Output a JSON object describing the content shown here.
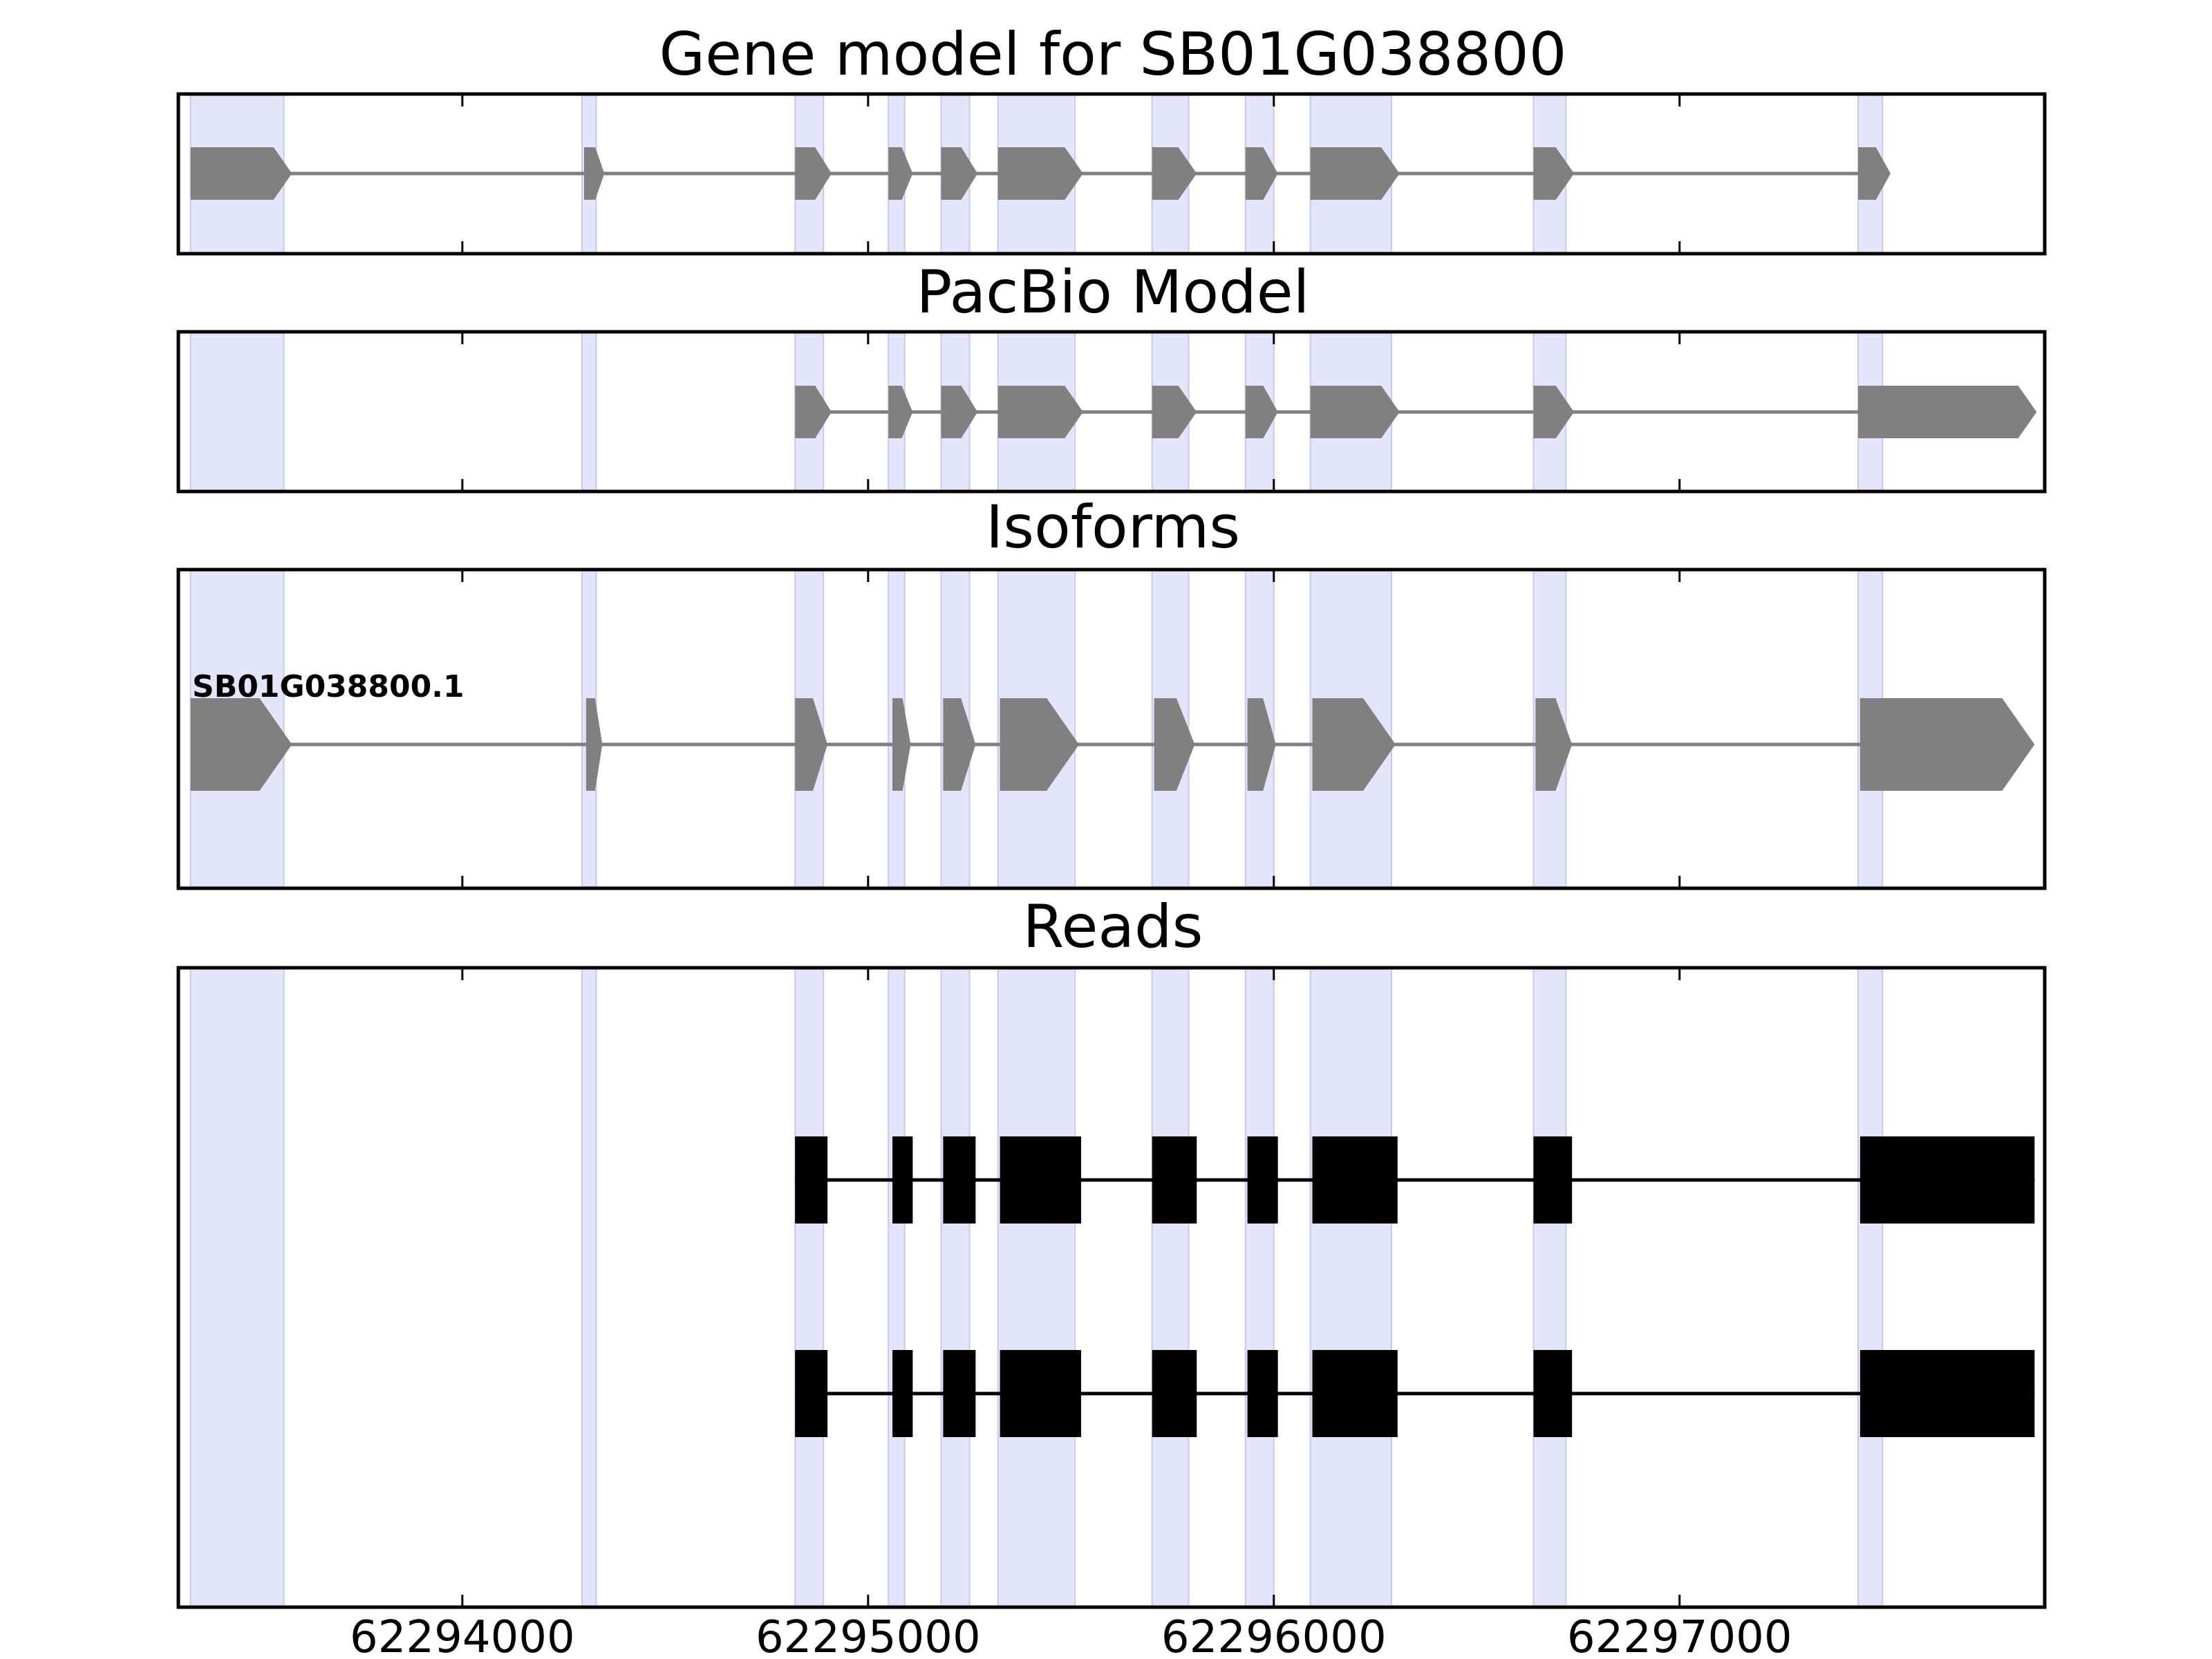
{
  "chart_data": {
    "type": "gene-structure",
    "xlim": [
      62293300,
      62297900
    ],
    "x_ticks": [
      62294000,
      62295000,
      62296000,
      62297000
    ],
    "x_tick_labels": [
      "62294000",
      "62295000",
      "62296000",
      "62297000"
    ],
    "highlight_regions": [
      [
        62293330,
        62293560
      ],
      [
        62294295,
        62294330
      ],
      [
        62294820,
        62294890
      ],
      [
        62295050,
        62295090
      ],
      [
        62295180,
        62295250
      ],
      [
        62295320,
        62295510
      ],
      [
        62295700,
        62295790
      ],
      [
        62295930,
        62296000
      ],
      [
        62296090,
        62296290
      ],
      [
        62296640,
        62296720
      ],
      [
        62297440,
        62297500
      ]
    ],
    "panels": [
      {
        "title": "Gene model for SB01G038800",
        "kind": "model",
        "exons": [
          [
            62293330,
            62293580
          ],
          [
            62294300,
            62294350
          ],
          [
            62294820,
            62294910
          ],
          [
            62295050,
            62295110
          ],
          [
            62295180,
            62295270
          ],
          [
            62295320,
            62295530
          ],
          [
            62295700,
            62295810
          ],
          [
            62295930,
            62296010
          ],
          [
            62296090,
            62296310
          ],
          [
            62296640,
            62296740
          ],
          [
            62297440,
            62297520
          ]
        ]
      },
      {
        "title": "PacBio Model",
        "kind": "model",
        "exons": [
          [
            62294820,
            62294910
          ],
          [
            62295050,
            62295110
          ],
          [
            62295180,
            62295270
          ],
          [
            62295320,
            62295530
          ],
          [
            62295700,
            62295810
          ],
          [
            62295930,
            62296010
          ],
          [
            62296090,
            62296310
          ],
          [
            62296640,
            62296740
          ],
          [
            62297440,
            62297880
          ]
        ]
      },
      {
        "title": "Isoforms",
        "kind": "model",
        "isoform_label": "SB01G038800.1",
        "exons": [
          [
            62293330,
            62293580
          ],
          [
            62294305,
            62294345
          ],
          [
            62294820,
            62294900
          ],
          [
            62295060,
            62295105
          ],
          [
            62295185,
            62295265
          ],
          [
            62295325,
            62295520
          ],
          [
            62295705,
            62295805
          ],
          [
            62295935,
            62296005
          ],
          [
            62296095,
            62296300
          ],
          [
            62296645,
            62296735
          ],
          [
            62297445,
            62297875
          ]
        ]
      },
      {
        "title": "Reads",
        "kind": "reads",
        "reads": [
          [
            [
              62294820,
              62294900
            ],
            [
              62295060,
              62295110
            ],
            [
              62295185,
              62295265
            ],
            [
              62295325,
              62295525
            ],
            [
              62295700,
              62295810
            ],
            [
              62295935,
              62296010
            ],
            [
              62296095,
              62296305
            ],
            [
              62296640,
              62296735
            ],
            [
              62297445,
              62297875
            ]
          ],
          [
            [
              62294820,
              62294900
            ],
            [
              62295060,
              62295110
            ],
            [
              62295185,
              62295265
            ],
            [
              62295325,
              62295525
            ],
            [
              62295700,
              62295810
            ],
            [
              62295935,
              62296010
            ],
            [
              62296095,
              62296305
            ],
            [
              62296640,
              62296735
            ],
            [
              62297445,
              62297875
            ]
          ]
        ]
      }
    ],
    "colors": {
      "highlight": "#e4e4fb",
      "highlight_edge": "#c8c8f0",
      "model_exon": "#808080",
      "model_intron": "#808080",
      "read": "#000000",
      "frame": "#000000"
    }
  }
}
